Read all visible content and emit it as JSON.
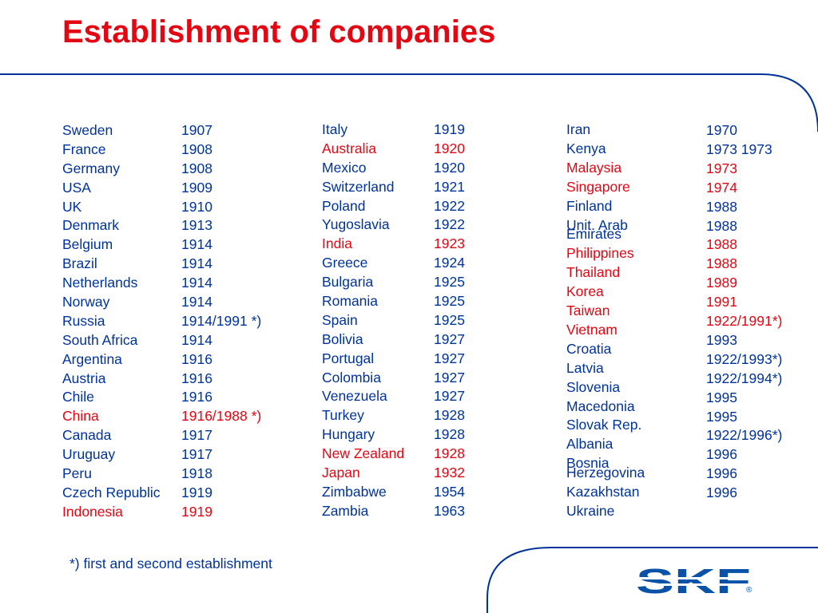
{
  "title": "Establishment of companies",
  "colors": {
    "normal": "#003399",
    "highlight": "#e30613",
    "line": "#003399"
  },
  "columns": [
    {
      "rows": [
        {
          "country": "Sweden",
          "year": "1907",
          "highlight": false
        },
        {
          "country": "France",
          "year": "1908",
          "highlight": false
        },
        {
          "country": "Germany",
          "year": "1908",
          "highlight": false
        },
        {
          "country": "USA",
          "year": "1909",
          "highlight": false
        },
        {
          "country": "UK",
          "year": "1910",
          "highlight": false
        },
        {
          "country": "Denmark",
          "year": "1913",
          "highlight": false
        },
        {
          "country": "Belgium",
          "year": "1914",
          "highlight": false
        },
        {
          "country": "Brazil",
          "year": "1914",
          "highlight": false
        },
        {
          "country": "Netherlands",
          "year": "1914",
          "highlight": false
        },
        {
          "country": "Norway",
          "year": "1914",
          "highlight": false
        },
        {
          "country": "Russia",
          "year": "1914/1991 *)",
          "highlight": false
        },
        {
          "country": "South Africa",
          "year": "1914",
          "highlight": false
        },
        {
          "country": "Argentina",
          "year": "1916",
          "highlight": false
        },
        {
          "country": "Austria",
          "year": "1916",
          "highlight": false
        },
        {
          "country": "Chile",
          "year": "1916",
          "highlight": false
        },
        {
          "country": "China",
          "year": "1916/1988 *)",
          "highlight": true
        },
        {
          "country": "Canada",
          "year": "1917",
          "highlight": false
        },
        {
          "country": "Uruguay",
          "year": "1917",
          "highlight": false
        },
        {
          "country": "Peru",
          "year": "1918",
          "highlight": false
        },
        {
          "country": "Czech Republic",
          "year": "1919",
          "highlight": false
        },
        {
          "country": "Indonesia",
          "year": "1919",
          "highlight": true
        }
      ]
    },
    {
      "rows": [
        {
          "country": "Italy",
          "year": "1919",
          "highlight": false
        },
        {
          "country": "Australia",
          "year": "1920",
          "highlight": true
        },
        {
          "country": "Mexico",
          "year": "1920",
          "highlight": false
        },
        {
          "country": "Switzerland",
          "year": "1921",
          "highlight": false
        },
        {
          "country": "Poland",
          "year": "1922",
          "highlight": false
        },
        {
          "country": "Yugoslavia",
          "year": "1922",
          "highlight": false
        },
        {
          "country": "India",
          "year": "1923",
          "highlight": true
        },
        {
          "country": "Greece",
          "year": "1924",
          "highlight": false
        },
        {
          "country": "Bulgaria",
          "year": "1925",
          "highlight": false
        },
        {
          "country": "Romania",
          "year": "1925",
          "highlight": false
        },
        {
          "country": "Spain",
          "year": "1925",
          "highlight": false
        },
        {
          "country": "Bolivia",
          "year": "1927",
          "highlight": false
        },
        {
          "country": "Portugal",
          "year": "1927",
          "highlight": false
        },
        {
          "country": "Colombia",
          "year": "1927",
          "highlight": false
        },
        {
          "country": "Venezuela",
          "year": "1927",
          "highlight": false
        },
        {
          "country": "Turkey",
          "year": "1928",
          "highlight": false
        },
        {
          "country": "Hungary",
          "year": "1928",
          "highlight": false
        },
        {
          "country": "New Zealand",
          "year": "1928",
          "highlight": true
        },
        {
          "country": "Japan",
          "year": "1932",
          "highlight": true
        },
        {
          "country": "Zimbabwe",
          "year": "1954",
          "highlight": false
        },
        {
          "country": "Zambia",
          "year": "1963",
          "highlight": false
        }
      ]
    }
  ],
  "col3_countries": [
    {
      "text": "Iran",
      "highlight": false
    },
    {
      "text": "Kenya",
      "highlight": false
    },
    {
      "text": "Malaysia",
      "highlight": true
    },
    {
      "text": "Singapore",
      "highlight": true
    },
    {
      "text": "Finland",
      "highlight": false
    },
    {
      "text": "Unit. Arab",
      "highlight": false
    },
    {
      "text": "Emirates",
      "highlight": false
    },
    {
      "text": "Philippines",
      "highlight": true
    },
    {
      "text": "Thailand",
      "highlight": true
    },
    {
      "text": "Korea",
      "highlight": true
    },
    {
      "text": "Taiwan",
      "highlight": true
    },
    {
      "text": "Vietnam",
      "highlight": true
    },
    {
      "text": "Croatia",
      "highlight": false
    },
    {
      "text": "Latvia",
      "highlight": false
    },
    {
      "text": "Slovenia",
      "highlight": false
    },
    {
      "text": "Macedonia",
      "highlight": false
    },
    {
      "text": "Slovak Rep.",
      "highlight": false
    },
    {
      "text": "Albania",
      "highlight": false
    },
    {
      "text": "Bosnia",
      "highlight": false
    },
    {
      "text": "Herzegovina",
      "highlight": false
    },
    {
      "text": "Kazakhstan",
      "highlight": false
    },
    {
      "text": "Ukraine",
      "highlight": false
    }
  ],
  "col3_years": [
    {
      "text": "1970",
      "highlight": false
    },
    {
      "text": "1973 1973",
      "highlight": false
    },
    {
      "text": "1973",
      "highlight": true
    },
    {
      "text": "1974",
      "highlight": true
    },
    {
      "text": "1988",
      "highlight": false
    },
    {
      "text": "1988",
      "highlight": false
    },
    {
      "text": "1988",
      "highlight": true
    },
    {
      "text": "1988",
      "highlight": true
    },
    {
      "text": "1989",
      "highlight": true
    },
    {
      "text": "1991",
      "highlight": true
    },
    {
      "text": "1922/1991*)",
      "highlight": true
    },
    {
      "text": "1993",
      "highlight": false
    },
    {
      "text": "1922/1993*)",
      "highlight": false
    },
    {
      "text": "1922/1994*)",
      "highlight": false
    },
    {
      "text": "1995",
      "highlight": false
    },
    {
      "text": "1995",
      "highlight": false
    },
    {
      "text": "1922/1996*)",
      "highlight": false
    },
    {
      "text": "1996",
      "highlight": false
    },
    {
      "text": "1996",
      "highlight": false
    },
    {
      "text": "1996",
      "highlight": false
    }
  ],
  "footnote": "*) first and second establishment",
  "logo": {
    "text": "SKF",
    "mark": "®",
    "color": "#0a52a8"
  }
}
